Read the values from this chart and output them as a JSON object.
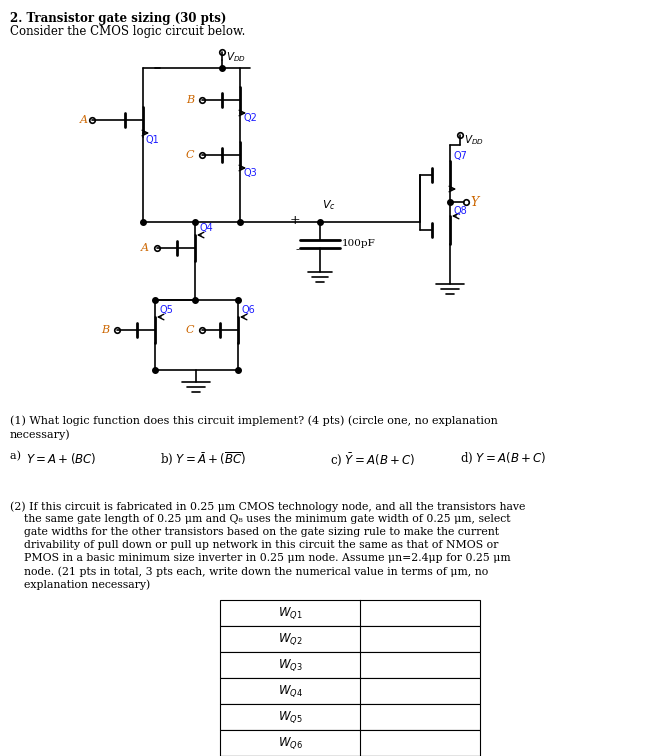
{
  "title_line1": "2. Transistor gate sizing (30 pts)",
  "title_line2": "Consider the CMOS logic circuit below.",
  "q1_text": "(1) What logic function does this circuit implement? (4 pts) (circle one, no explanation",
  "q1_text2": "necessary)",
  "q2_text_lines": [
    "(2) If this circuit is fabricated in 0.25 μm CMOS technology node, and all the transistors have",
    "    the same gate length of 0.25 μm and Q₈ uses the minimum gate width of 0.25 μm, select",
    "    gate widths for the other transistors based on the gate sizing rule to make the current",
    "    drivability of pull down or pull up network in this circuit the same as that of NMOS or",
    "    PMOS in a basic minimum size inverter in 0.25 μm node. Assume μn=2.4μp for 0.25 μm",
    "    node. (21 pts in total, 3 pts each, write down the numerical value in terms of μm, no",
    "    explanation necessary)"
  ],
  "bg_color": "#ffffff",
  "text_color": "#000000",
  "line_color": "#000000",
  "label_color": "#1a1aff",
  "input_color": "#cc6600",
  "lw": 1.2,
  "lw_thick": 2.0
}
